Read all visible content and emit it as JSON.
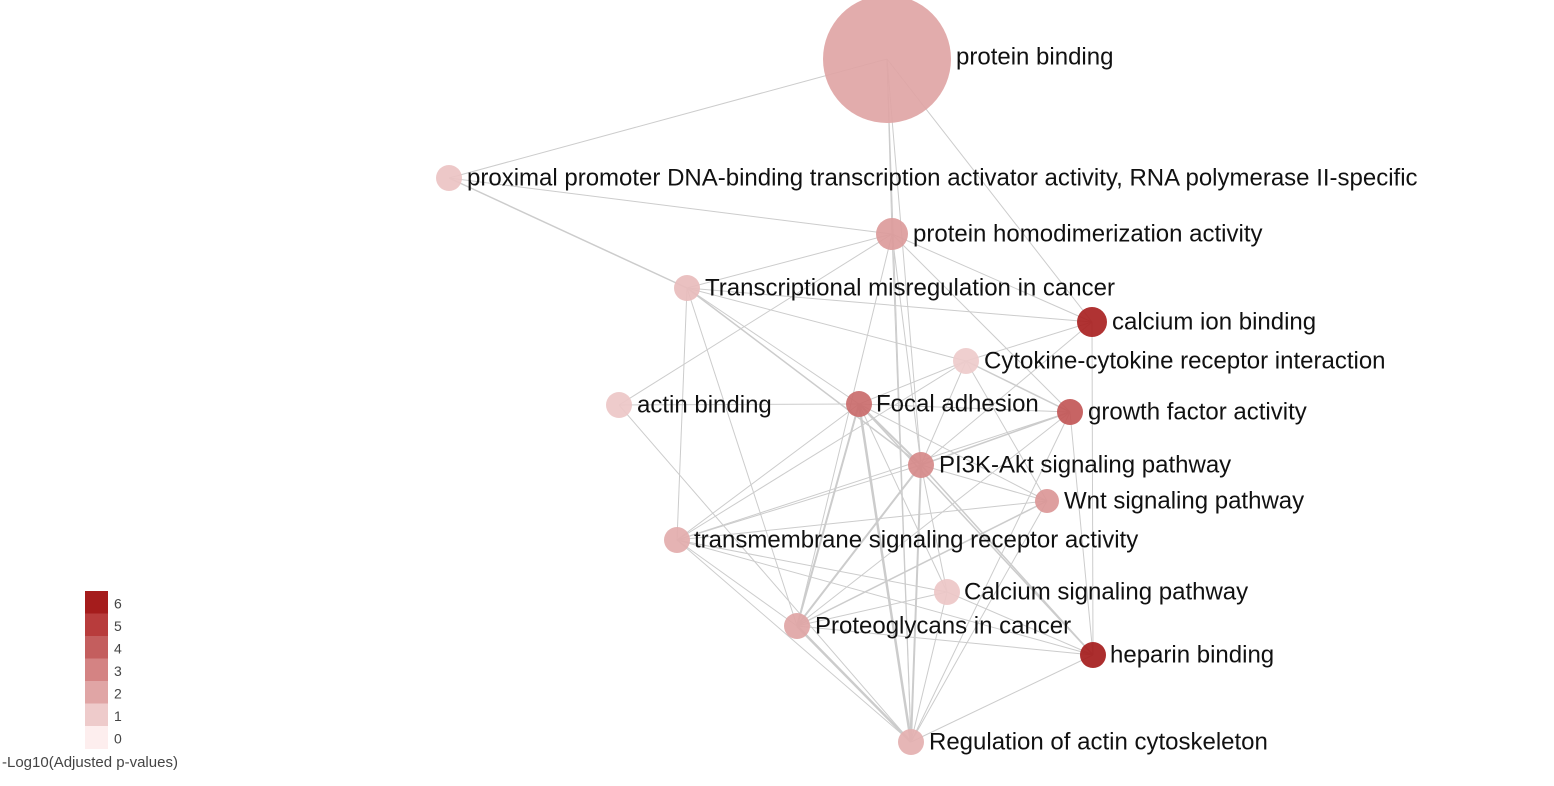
{
  "network": {
    "nodes": [
      {
        "id": "protein_binding",
        "label": "protein binding",
        "value": 2.0
      },
      {
        "id": "proximal_promoter",
        "label": "proximal promoter DNA-binding transcription activator activity, RNA polymerase II-specific",
        "value": 1.2
      },
      {
        "id": "protein_homodimerization",
        "label": "protein homodimerization activity",
        "value": 2.3
      },
      {
        "id": "transcriptional_misregulation",
        "label": "Transcriptional misregulation in cancer",
        "value": 1.4
      },
      {
        "id": "calcium_ion_binding",
        "label": "calcium ion binding",
        "value": 5.8
      },
      {
        "id": "cytokine_receptor",
        "label": "Cytokine-cytokine receptor interaction",
        "value": 1.0
      },
      {
        "id": "actin_binding",
        "label": "actin binding",
        "value": 1.1
      },
      {
        "id": "focal_adhesion",
        "label": "Focal adhesion",
        "value": 3.6
      },
      {
        "id": "growth_factor_activity",
        "label": "growth factor activity",
        "value": 4.2
      },
      {
        "id": "pi3k_akt",
        "label": "PI3K-Akt signaling pathway",
        "value": 2.8
      },
      {
        "id": "wnt_signaling",
        "label": "Wnt signaling pathway",
        "value": 2.4
      },
      {
        "id": "transmembrane_receptor",
        "label": "transmembrane signaling receptor activity",
        "value": 1.8
      },
      {
        "id": "calcium_signaling",
        "label": "Calcium signaling pathway",
        "value": 1.1
      },
      {
        "id": "proteoglycans",
        "label": "Proteoglycans in cancer",
        "value": 2.0
      },
      {
        "id": "heparin_binding",
        "label": "heparin binding",
        "value": 6.0
      },
      {
        "id": "regulation_actin",
        "label": "Regulation of actin cytoskeleton",
        "value": 1.7
      }
    ],
    "edges": [
      [
        "protein_binding",
        "proximal_promoter",
        1
      ],
      [
        "protein_binding",
        "protein_homodimerization",
        1
      ],
      [
        "protein_binding",
        "calcium_ion_binding",
        1
      ],
      [
        "protein_binding",
        "pi3k_akt",
        1
      ],
      [
        "protein_binding",
        "regulation_actin",
        1
      ],
      [
        "proximal_promoter",
        "protein_homodimerization",
        1
      ],
      [
        "proximal_promoter",
        "transcriptional_misregulation",
        1.5
      ],
      [
        "protein_homodimerization",
        "transcriptional_misregulation",
        1
      ],
      [
        "protein_homodimerization",
        "calcium_ion_binding",
        1
      ],
      [
        "protein_homodimerization",
        "growth_factor_activity",
        1
      ],
      [
        "protein_homodimerization",
        "actin_binding",
        1
      ],
      [
        "protein_homodimerization",
        "pi3k_akt",
        1
      ],
      [
        "protein_homodimerization",
        "proteoglycans",
        1
      ],
      [
        "protein_homodimerization",
        "regulation_actin",
        1
      ],
      [
        "transcriptional_misregulation",
        "calcium_ion_binding",
        1
      ],
      [
        "transcriptional_misregulation",
        "cytokine_receptor",
        1
      ],
      [
        "transcriptional_misregulation",
        "focal_adhesion",
        1
      ],
      [
        "transcriptional_misregulation",
        "pi3k_akt",
        1.5
      ],
      [
        "transcriptional_misregulation",
        "transmembrane_receptor",
        1
      ],
      [
        "transcriptional_misregulation",
        "proteoglycans",
        1
      ],
      [
        "calcium_ion_binding",
        "cytokine_receptor",
        1
      ],
      [
        "calcium_ion_binding",
        "heparin_binding",
        1
      ],
      [
        "calcium_ion_binding",
        "pi3k_akt",
        1
      ],
      [
        "cytokine_receptor",
        "focal_adhesion",
        1
      ],
      [
        "cytokine_receptor",
        "growth_factor_activity",
        1.5
      ],
      [
        "cytokine_receptor",
        "pi3k_akt",
        1
      ],
      [
        "cytokine_receptor",
        "wnt_signaling",
        1
      ],
      [
        "cytokine_receptor",
        "transmembrane_receptor",
        1
      ],
      [
        "actin_binding",
        "focal_adhesion",
        1
      ],
      [
        "actin_binding",
        "regulation_actin",
        1
      ],
      [
        "focal_adhesion",
        "growth_factor_activity",
        1
      ],
      [
        "focal_adhesion",
        "pi3k_akt",
        2
      ],
      [
        "focal_adhesion",
        "wnt_signaling",
        1
      ],
      [
        "focal_adhesion",
        "transmembrane_receptor",
        1
      ],
      [
        "focal_adhesion",
        "calcium_signaling",
        1
      ],
      [
        "focal_adhesion",
        "proteoglycans",
        2
      ],
      [
        "focal_adhesion",
        "heparin_binding",
        1.5
      ],
      [
        "focal_adhesion",
        "regulation_actin",
        2.5
      ],
      [
        "growth_factor_activity",
        "pi3k_akt",
        1.5
      ],
      [
        "growth_factor_activity",
        "transmembrane_receptor",
        1
      ],
      [
        "growth_factor_activity",
        "proteoglycans",
        1
      ],
      [
        "growth_factor_activity",
        "heparin_binding",
        1
      ],
      [
        "growth_factor_activity",
        "regulation_actin",
        1
      ],
      [
        "pi3k_akt",
        "wnt_signaling",
        1
      ],
      [
        "pi3k_akt",
        "transmembrane_receptor",
        1
      ],
      [
        "pi3k_akt",
        "calcium_signaling",
        1
      ],
      [
        "pi3k_akt",
        "proteoglycans",
        2
      ],
      [
        "pi3k_akt",
        "heparin_binding",
        1.5
      ],
      [
        "pi3k_akt",
        "regulation_actin",
        2
      ],
      [
        "wnt_signaling",
        "transmembrane_receptor",
        1
      ],
      [
        "wnt_signaling",
        "proteoglycans",
        1.5
      ],
      [
        "wnt_signaling",
        "regulation_actin",
        1
      ],
      [
        "transmembrane_receptor",
        "calcium_signaling",
        1
      ],
      [
        "transmembrane_receptor",
        "proteoglycans",
        1
      ],
      [
        "transmembrane_receptor",
        "heparin_binding",
        1
      ],
      [
        "transmembrane_receptor",
        "regulation_actin",
        1
      ],
      [
        "calcium_signaling",
        "proteoglycans",
        1
      ],
      [
        "calcium_signaling",
        "heparin_binding",
        1
      ],
      [
        "calcium_signaling",
        "regulation_actin",
        1
      ],
      [
        "proteoglycans",
        "heparin_binding",
        1
      ],
      [
        "proteoglycans",
        "regulation_actin",
        2.5
      ],
      [
        "heparin_binding",
        "regulation_actin",
        1
      ]
    ]
  },
  "legend": {
    "title": "-Log10(Adjusted p-values)",
    "items": [
      {
        "label": "6",
        "color": "#a51c1c"
      },
      {
        "label": "5",
        "color": "#b83c3c"
      },
      {
        "label": "4",
        "color": "#c45e5e"
      },
      {
        "label": "3",
        "color": "#d48383"
      },
      {
        "label": "2",
        "color": "#e0a5a5"
      },
      {
        "label": "1",
        "color": "#eecbcb"
      },
      {
        "label": "0",
        "color": "#fdeeee"
      }
    ]
  }
}
